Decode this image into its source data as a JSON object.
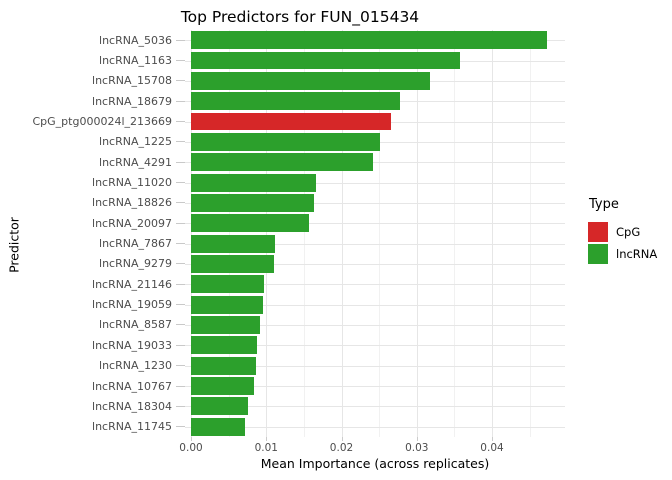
{
  "title": "Top Predictors for FUN_015434",
  "colors": {
    "cpg": "#d62728",
    "lncrna": "#2ca02c",
    "grid_major": "#e6e6e6",
    "grid_minor": "#f1f1f1",
    "axis_text": "#4d4d4d",
    "background": "#ffffff"
  },
  "legend": {
    "title": "Type",
    "position": "right",
    "items": [
      {
        "label": "CpG",
        "color": "#d62728"
      },
      {
        "label": "lncRNA",
        "color": "#2ca02c"
      }
    ]
  },
  "chart_data": {
    "type": "bar",
    "orientation": "horizontal",
    "title": "Top Predictors for FUN_015434",
    "xlabel": "Mean Importance (across replicates)",
    "ylabel": "Predictor",
    "grid": true,
    "legend_position": "right",
    "xlim": [
      0,
      0.0497
    ],
    "x_major_ticks": [
      0.0,
      0.01,
      0.02,
      0.03,
      0.04
    ],
    "x_tick_labels": [
      "0.00",
      "0.01",
      "0.02",
      "0.03",
      "0.04"
    ],
    "x_minor_ticks": [
      0.005,
      0.015,
      0.025,
      0.035,
      0.045
    ],
    "categories": [
      "lncRNA_5036",
      "lncRNA_1163",
      "lncRNA_15708",
      "lncRNA_18679",
      "CpG_ptg000024l_213669",
      "lncRNA_1225",
      "lncRNA_4291",
      "lncRNA_11020",
      "lncRNA_18826",
      "lncRNA_20097",
      "lncRNA_7867",
      "lncRNA_9279",
      "lncRNA_21146",
      "lncRNA_19059",
      "lncRNA_8587",
      "lncRNA_19033",
      "lncRNA_1230",
      "lncRNA_10767",
      "lncRNA_18304",
      "lncRNA_11745"
    ],
    "values": [
      0.0473,
      0.0357,
      0.0317,
      0.0278,
      0.0266,
      0.0251,
      0.0242,
      0.0166,
      0.0163,
      0.0157,
      0.0112,
      0.011,
      0.0097,
      0.0096,
      0.0092,
      0.0087,
      0.0086,
      0.0084,
      0.0076,
      0.0072
    ],
    "types": [
      "lncRNA",
      "lncRNA",
      "lncRNA",
      "lncRNA",
      "CpG",
      "lncRNA",
      "lncRNA",
      "lncRNA",
      "lncRNA",
      "lncRNA",
      "lncRNA",
      "lncRNA",
      "lncRNA",
      "lncRNA",
      "lncRNA",
      "lncRNA",
      "lncRNA",
      "lncRNA",
      "lncRNA",
      "lncRNA"
    ],
    "type_colors": {
      "CpG": "#d62728",
      "lncRNA": "#2ca02c"
    }
  }
}
